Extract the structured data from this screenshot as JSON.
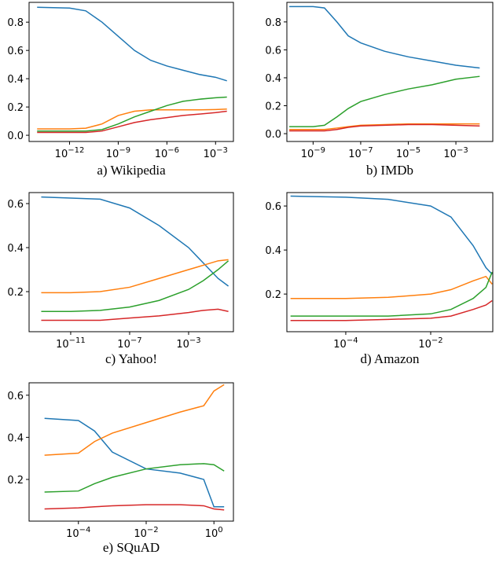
{
  "chart_data": [
    {
      "type": "line",
      "title": "a) Wikipedia",
      "xscale": "log",
      "xlim": [
        3.2e-15,
        0.0126
      ],
      "ylim": [
        -0.044,
        0.94
      ],
      "xticks": [
        {
          "value": 1e-12,
          "label": "10−12"
        },
        {
          "value": 1e-09,
          "label": "10−9"
        },
        {
          "value": 1e-06,
          "label": "10−6"
        },
        {
          "value": 0.001,
          "label": "10−3"
        }
      ],
      "yticks": [
        {
          "value": 0,
          "label": "0.0"
        },
        0.2,
        0.4,
        0.6,
        0.8
      ],
      "x": [
        1e-14,
        1e-12,
        1e-11,
        1e-10,
        1e-09,
        1e-08,
        1e-07,
        1e-06,
        1e-05,
        0.0001,
        0.001,
        0.005
      ],
      "series": [
        {
          "color": "#1f77b4",
          "values": [
            0.905,
            0.9,
            0.88,
            0.8,
            0.7,
            0.6,
            0.53,
            0.49,
            0.46,
            0.43,
            0.41,
            0.385
          ]
        },
        {
          "color": "#ff7f0e",
          "values": [
            0.045,
            0.045,
            0.05,
            0.08,
            0.14,
            0.17,
            0.18,
            0.18,
            0.18,
            0.18,
            0.182,
            0.185
          ]
        },
        {
          "color": "#2ca02c",
          "values": [
            0.03,
            0.03,
            0.03,
            0.04,
            0.08,
            0.13,
            0.17,
            0.21,
            0.24,
            0.255,
            0.265,
            0.27
          ]
        },
        {
          "color": "#d62728",
          "values": [
            0.02,
            0.02,
            0.02,
            0.03,
            0.06,
            0.09,
            0.11,
            0.125,
            0.14,
            0.15,
            0.16,
            0.17
          ]
        }
      ]
    },
    {
      "type": "line",
      "title": "b) IMDb",
      "xscale": "log",
      "xlim": [
        7.9e-11,
        0.0355
      ],
      "ylim": [
        -0.056,
        0.94
      ],
      "xticks": [
        {
          "value": 1e-09,
          "label": "10−9"
        },
        {
          "value": 1e-07,
          "label": "10−7"
        },
        {
          "value": 1e-05,
          "label": "10−5"
        },
        {
          "value": 0.001,
          "label": "10−3"
        }
      ],
      "yticks": [
        {
          "value": 0,
          "label": "0.0"
        },
        0.2,
        0.4,
        0.6,
        0.8
      ],
      "x": [
        1e-10,
        1e-09,
        3e-09,
        1e-08,
        3e-08,
        1e-07,
        1e-06,
        1e-05,
        0.0001,
        0.001,
        0.01
      ],
      "series": [
        {
          "color": "#1f77b4",
          "values": [
            0.91,
            0.91,
            0.9,
            0.8,
            0.7,
            0.65,
            0.59,
            0.55,
            0.52,
            0.49,
            0.47
          ]
        },
        {
          "color": "#ff7f0e",
          "values": [
            0.03,
            0.03,
            0.03,
            0.04,
            0.05,
            0.06,
            0.065,
            0.07,
            0.07,
            0.07,
            0.07
          ]
        },
        {
          "color": "#2ca02c",
          "values": [
            0.05,
            0.05,
            0.06,
            0.12,
            0.18,
            0.23,
            0.28,
            0.32,
            0.35,
            0.39,
            0.41
          ]
        },
        {
          "color": "#d62728",
          "values": [
            0.02,
            0.02,
            0.02,
            0.03,
            0.045,
            0.055,
            0.06,
            0.065,
            0.065,
            0.06,
            0.055
          ]
        }
      ]
    },
    {
      "type": "line",
      "title": "c) Yahoo!",
      "xscale": "log",
      "xlim": [
        1.5e-14,
        1.1
      ],
      "ylim": [
        0.018,
        0.65
      ],
      "xticks": [
        {
          "value": 1e-11,
          "label": "10−11"
        },
        {
          "value": 1e-07,
          "label": "10−7"
        },
        {
          "value": 0.001,
          "label": "10−3"
        }
      ],
      "yticks": [
        0.2,
        0.4,
        0.6
      ],
      "x": [
        1e-13,
        1e-11,
        1e-09,
        1e-07,
        1e-05,
        0.001,
        0.01,
        0.1,
        0.5
      ],
      "series": [
        {
          "color": "#1f77b4",
          "values": [
            0.63,
            0.625,
            0.62,
            0.58,
            0.5,
            0.4,
            0.33,
            0.26,
            0.225
          ]
        },
        {
          "color": "#ff7f0e",
          "values": [
            0.195,
            0.195,
            0.2,
            0.22,
            0.26,
            0.3,
            0.32,
            0.34,
            0.345
          ]
        },
        {
          "color": "#2ca02c",
          "values": [
            0.11,
            0.11,
            0.115,
            0.13,
            0.16,
            0.21,
            0.25,
            0.3,
            0.34
          ]
        },
        {
          "color": "#d62728",
          "values": [
            0.07,
            0.07,
            0.07,
            0.08,
            0.09,
            0.105,
            0.115,
            0.12,
            0.11
          ]
        }
      ]
    },
    {
      "type": "line",
      "title": "d) Amazon",
      "xscale": "log",
      "xlim": [
        4.1e-06,
        0.29
      ],
      "ylim": [
        0.029,
        0.661
      ],
      "xticks": [
        {
          "value": 0.0001,
          "label": "10−4"
        },
        {
          "value": 0.01,
          "label": "10−2"
        }
      ],
      "yticks": [
        0.2,
        0.4,
        0.6
      ],
      "x": [
        5e-06,
        0.0001,
        0.001,
        0.01,
        0.03,
        0.1,
        0.2,
        0.28
      ],
      "series": [
        {
          "color": "#1f77b4",
          "values": [
            0.645,
            0.64,
            0.63,
            0.6,
            0.55,
            0.42,
            0.32,
            0.29
          ]
        },
        {
          "color": "#ff7f0e",
          "values": [
            0.18,
            0.18,
            0.185,
            0.2,
            0.22,
            0.26,
            0.28,
            0.245
          ]
        },
        {
          "color": "#2ca02c",
          "values": [
            0.1,
            0.1,
            0.1,
            0.11,
            0.13,
            0.18,
            0.23,
            0.3
          ]
        },
        {
          "color": "#d62728",
          "values": [
            0.08,
            0.08,
            0.085,
            0.09,
            0.1,
            0.13,
            0.15,
            0.17
          ]
        }
      ]
    },
    {
      "type": "line",
      "title": "e) SQuAD",
      "xscale": "log",
      "xlim": [
        3.5e-06,
        3.76
      ],
      "ylim": [
        0.002,
        0.659
      ],
      "xticks": [
        {
          "value": 0.0001,
          "label": "10−4"
        },
        {
          "value": 0.01,
          "label": "10−2"
        },
        {
          "value": 1,
          "label": "100"
        }
      ],
      "yticks": [
        0.2,
        0.4,
        0.6
      ],
      "x": [
        1e-05,
        0.0001,
        0.0003,
        0.001,
        0.01,
        0.1,
        0.5,
        1,
        2
      ],
      "series": [
        {
          "color": "#1f77b4",
          "values": [
            0.49,
            0.48,
            0.43,
            0.33,
            0.25,
            0.23,
            0.2,
            0.07,
            0.07
          ]
        },
        {
          "color": "#ff7f0e",
          "values": [
            0.315,
            0.325,
            0.38,
            0.42,
            0.47,
            0.52,
            0.55,
            0.62,
            0.65
          ]
        },
        {
          "color": "#2ca02c",
          "values": [
            0.14,
            0.145,
            0.18,
            0.21,
            0.25,
            0.27,
            0.275,
            0.27,
            0.24
          ]
        },
        {
          "color": "#d62728",
          "values": [
            0.06,
            0.065,
            0.07,
            0.075,
            0.08,
            0.08,
            0.075,
            0.06,
            0.055
          ]
        }
      ]
    }
  ]
}
